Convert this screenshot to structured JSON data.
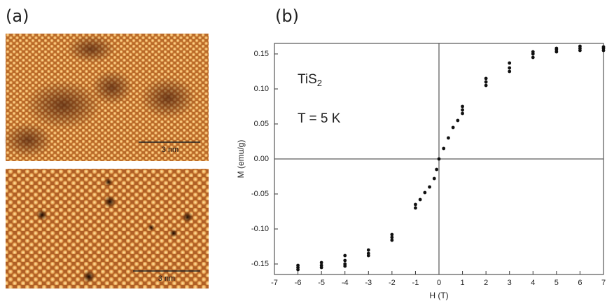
{
  "figure": {
    "panel_labels": [
      "(a)",
      "(b)"
    ],
    "scale_bars": [
      "3 nm",
      "3 nm"
    ]
  },
  "chart_data": {
    "type": "scatter",
    "x_label": "H (T)",
    "y_label": "M (emu/g)",
    "annotations": {
      "formula": {
        "base": "TiS",
        "sub": "2"
      },
      "temperature": "T = 5 K"
    },
    "x": [
      -6,
      -6,
      -6,
      -5,
      -5,
      -5,
      -4,
      -4,
      -4,
      -4,
      -3,
      -3,
      -3,
      -2,
      -2,
      -2,
      -1,
      -1,
      -0.8,
      -0.6,
      -0.4,
      -0.2,
      -0.1,
      0,
      0.2,
      0.4,
      0.6,
      0.8,
      1,
      1,
      1,
      2,
      2,
      2,
      3,
      3,
      3,
      4,
      4,
      4,
      5,
      5,
      5,
      6,
      6,
      6,
      7,
      7,
      7
    ],
    "values": [
      -0.152,
      -0.155,
      -0.158,
      -0.148,
      -0.152,
      -0.155,
      -0.138,
      -0.145,
      -0.15,
      -0.153,
      -0.13,
      -0.135,
      -0.138,
      -0.108,
      -0.112,
      -0.116,
      -0.065,
      -0.07,
      -0.058,
      -0.048,
      -0.04,
      -0.028,
      -0.015,
      0,
      0.015,
      0.03,
      0.045,
      0.055,
      0.065,
      0.07,
      0.075,
      0.105,
      0.11,
      0.115,
      0.125,
      0.13,
      0.137,
      0.145,
      0.15,
      0.153,
      0.153,
      0.156,
      0.158,
      0.155,
      0.158,
      0.161,
      0.155,
      0.158,
      0.16
    ],
    "color": "#111111",
    "xlim": [
      -7,
      7
    ],
    "ylim": [
      -0.165,
      0.165
    ],
    "xticks": [
      -7,
      -6,
      -5,
      -4,
      -3,
      -2,
      -1,
      0,
      1,
      2,
      3,
      4,
      5,
      6,
      7
    ],
    "yticks": [
      -0.15,
      {
        "value": -0.1,
        "label": "-0.10"
      },
      -0.05,
      {
        "value": 0,
        "label": "0.00"
      },
      0.05,
      {
        "value": 0.1,
        "label": "0.10"
      },
      0.15
    ],
    "zero_lines": true
  }
}
